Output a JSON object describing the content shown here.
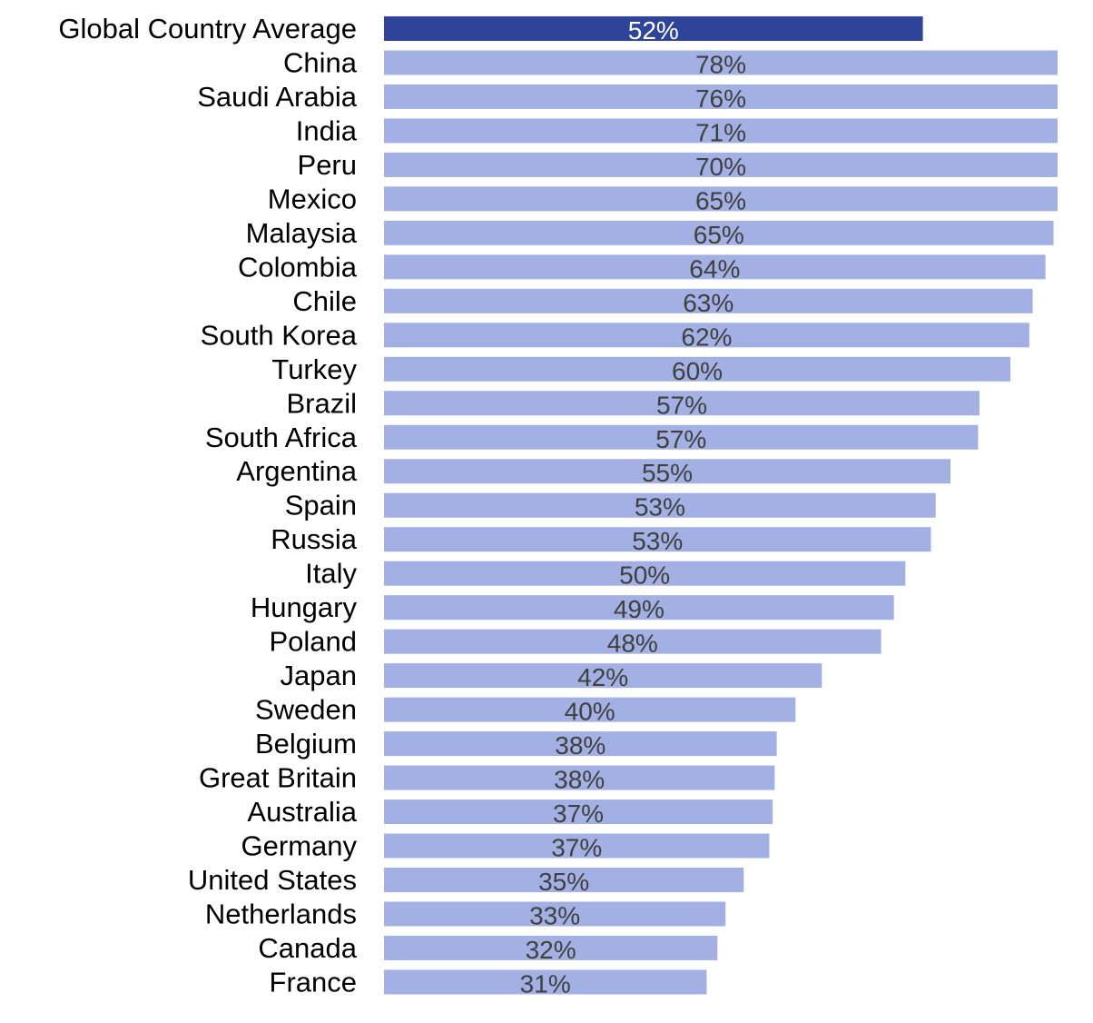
{
  "chart_data": {
    "type": "bar",
    "orientation": "horizontal",
    "title": "",
    "xlabel": "",
    "ylabel": "",
    "xlim": [
      0,
      100
    ],
    "grid": false,
    "legend": "none",
    "categories": [
      "Global Country Average",
      "China",
      "Saudi Arabia",
      "India",
      "Peru",
      "Mexico",
      "Malaysia",
      "Colombia",
      "Chile",
      "South Korea",
      "Turkey",
      "Brazil",
      "South Africa",
      "Argentina",
      "Spain",
      "Russia",
      "Italy",
      "Hungary",
      "Poland",
      "Japan",
      "Sweden",
      "Belgium",
      "Great Britain",
      "Australia",
      "Germany",
      "United States",
      "Netherlands",
      "Canada",
      "France"
    ],
    "values": [
      52,
      78,
      76,
      71,
      70,
      65,
      65,
      64,
      63,
      62,
      60,
      57,
      57,
      55,
      53,
      53,
      50,
      49,
      48,
      42,
      40,
      38,
      38,
      37,
      37,
      35,
      33,
      32,
      31
    ],
    "bar_fill_fractions": [
      0.8,
      1.0,
      1.0,
      1.0,
      1.0,
      1.0,
      0.994,
      0.982,
      0.963,
      0.958,
      0.93,
      0.884,
      0.882,
      0.841,
      0.819,
      0.812,
      0.774,
      0.757,
      0.738,
      0.65,
      0.611,
      0.583,
      0.58,
      0.577,
      0.572,
      0.534,
      0.507,
      0.495,
      0.479
    ],
    "data_labels": [
      "52%",
      "78%",
      "76%",
      "71%",
      "70%",
      "65%",
      "65%",
      "64%",
      "63%",
      "62%",
      "60%",
      "57%",
      "57%",
      "55%",
      "53%",
      "53%",
      "50%",
      "49%",
      "48%",
      "42%",
      "40%",
      "38%",
      "38%",
      "37%",
      "37%",
      "35%",
      "33%",
      "32%",
      "31%"
    ],
    "colors": {
      "highlight": "#2e4499",
      "bar": "#a2b0e3",
      "highlight_label": "#ffffff",
      "bar_label": "#404040"
    }
  }
}
